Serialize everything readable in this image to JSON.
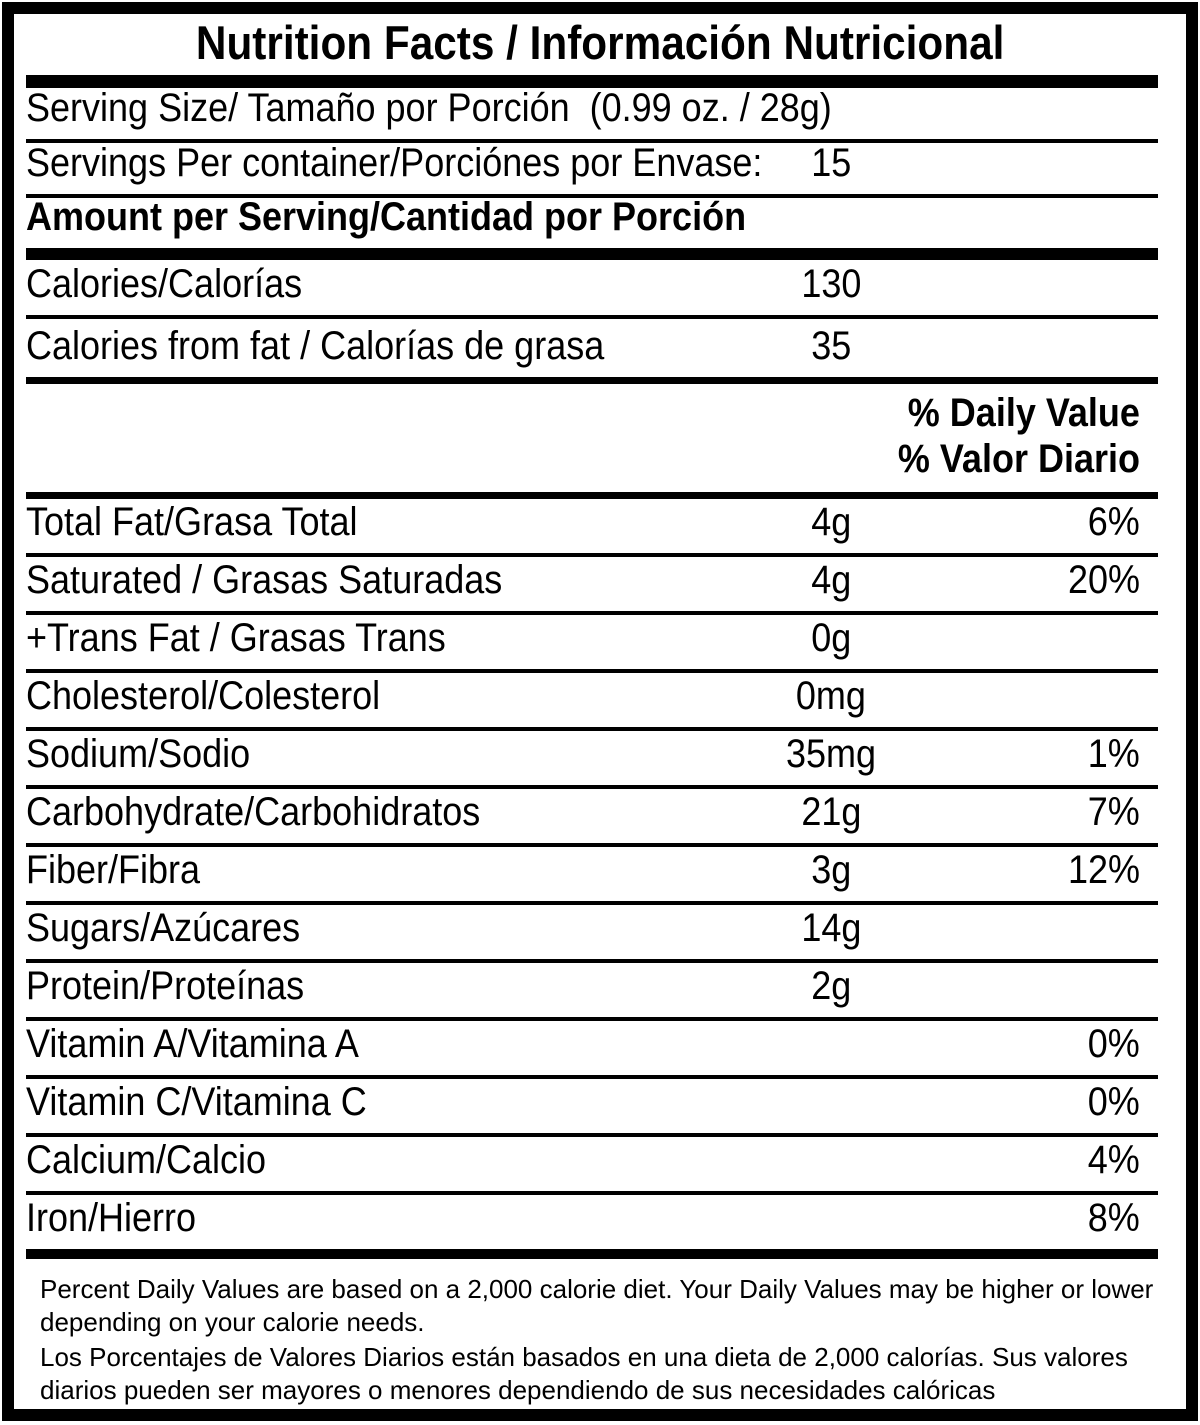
{
  "title": "Nutrition Facts / Información Nutricional",
  "serving": {
    "size_label": "Serving Size/ Tamaño por Porción  (0.99 oz. / 28g)",
    "per_container_label": "Servings Per container/Porciónes por Envase:",
    "per_container_value": "15"
  },
  "amount_header": "Amount per Serving/Cantidad por Porción",
  "calories": {
    "label": "Calories/Calorías",
    "value": "130"
  },
  "calories_from_fat": {
    "label": "Calories from fat / Calorías de grasa",
    "value": "35"
  },
  "dv_header": {
    "line1": "% Daily Value",
    "line2": "% Valor Diario"
  },
  "nutrients": [
    {
      "label": "Total Fat/Grasa Total",
      "amount": "4g",
      "dv": "6%"
    },
    {
      "label": "Saturated / Grasas Saturadas",
      "amount": "4g",
      "dv": "20%"
    },
    {
      "label": "+Trans Fat / Grasas Trans",
      "amount": "0g",
      "dv": ""
    },
    {
      "label": "Cholesterol/Colesterol",
      "amount": "0mg",
      "dv": ""
    },
    {
      "label": "Sodium/Sodio",
      "amount": "35mg",
      "dv": "1%"
    },
    {
      "label": "Carbohydrate/Carbohidratos",
      "amount": "21g",
      "dv": "7%"
    },
    {
      "label": "Fiber/Fibra",
      "amount": "3g",
      "dv": "12%"
    },
    {
      "label": "Sugars/Azúcares",
      "amount": "14g",
      "dv": ""
    },
    {
      "label": "Protein/Proteínas",
      "amount": "2g",
      "dv": ""
    },
    {
      "label": "Vitamin A/Vitamina A",
      "amount": "",
      "dv": "0%"
    },
    {
      "label": "Vitamin C/Vitamina C",
      "amount": "",
      "dv": "0%"
    },
    {
      "label": "Calcium/Calcio",
      "amount": "",
      "dv": "4%"
    },
    {
      "label": "Iron/Hierro",
      "amount": "",
      "dv": "8%"
    }
  ],
  "footnote": {
    "en": "Percent Daily Values are based on a 2,000 calorie diet. Your Daily Values may be higher or lower depending on your calorie needs.",
    "es": "Los Porcentajes de Valores Diarios están basados en una dieta de 2,000 calorías. Sus valores diarios pueden ser mayores o menores dependiendo de sus necesidades calóricas"
  },
  "colors": {
    "text": "#000000",
    "background": "#ffffff",
    "rule": "#000000"
  }
}
